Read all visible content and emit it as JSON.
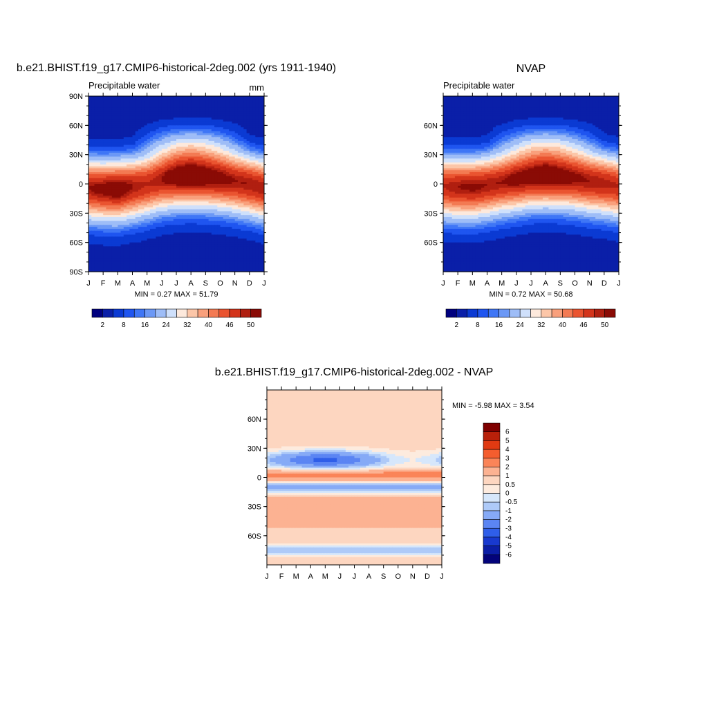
{
  "panels": [
    {
      "title": "b.e21.BHIST.f19_g17.CMIP6-historical-2deg.002 (yrs 1911-1940)",
      "left_label": "Precipitable water",
      "right_label": "mm",
      "min_max": "MIN =   0.27 MAX =  51.79",
      "ylabels": [
        "90N",
        "60N",
        "30N",
        "0",
        "30S",
        "60S",
        "90S"
      ],
      "xlabels": [
        "J",
        "F",
        "M",
        "A",
        "M",
        "J",
        "J",
        "A",
        "S",
        "O",
        "N",
        "D",
        "J"
      ],
      "colorbar_labels": [
        "2",
        "8",
        "16",
        "24",
        "32",
        "40",
        "46",
        "50"
      ]
    },
    {
      "title": "NVAP",
      "left_label": "Precipitable water",
      "right_label": "",
      "min_max": "MIN =   0.72 MAX =  50.68",
      "ylabels": [
        "60N",
        "30N",
        "0",
        "30S",
        "60S"
      ],
      "xlabels": [
        "J",
        "F",
        "M",
        "A",
        "M",
        "J",
        "J",
        "A",
        "S",
        "O",
        "N",
        "D",
        "J"
      ],
      "colorbar_labels": [
        "2",
        "8",
        "16",
        "24",
        "32",
        "40",
        "46",
        "50"
      ]
    },
    {
      "title": "b.e21.BHIST.f19_g17.CMIP6-historical-2deg.002 - NVAP",
      "min_max": "MIN =  -5.98 MAX =   3.54",
      "ylabels": [
        "60N",
        "30N",
        "0",
        "30S",
        "60S"
      ],
      "xlabels": [
        "J",
        "F",
        "M",
        "A",
        "M",
        "J",
        "J",
        "A",
        "S",
        "O",
        "N",
        "D",
        "J"
      ],
      "colorbar_labels": [
        "6",
        "5",
        "4",
        "3",
        "2",
        "1",
        "0.5",
        "0",
        "-0.5",
        "-1",
        "-2",
        "-3",
        "-4",
        "-5",
        "-6"
      ]
    }
  ],
  "colors": {
    "abs_scale": [
      "#00007f",
      "#0a1fa8",
      "#0b3ad3",
      "#1f55f0",
      "#3f76f6",
      "#6b98f6",
      "#9ebdf7",
      "#cfe0fb",
      "#fde9dc",
      "#fcc6a8",
      "#f9a07c",
      "#f37a53",
      "#ea5430",
      "#d3341b",
      "#b01f10",
      "#8a0b05"
    ],
    "diff_scale": [
      "#7f0000",
      "#b8200a",
      "#e03a12",
      "#f45d2e",
      "#fa8458",
      "#fcb292",
      "#fdd6c0",
      "#fdebde",
      "#d6e7fb",
      "#aecaf8",
      "#86aaf6",
      "#5b85f3",
      "#2f5ee9",
      "#1839cf",
      "#0b1ea6",
      "#03037a"
    ]
  },
  "chart_data": [
    {
      "type": "heatmap",
      "title": "b.e21.BHIST.f19_g17.CMIP6-historical-2deg.002 (yrs 1911-1940)",
      "subtitle": "Precipitable water",
      "units": "mm",
      "x": [
        "J",
        "F",
        "M",
        "A",
        "M",
        "J",
        "J",
        "A",
        "S",
        "O",
        "N",
        "D",
        "J"
      ],
      "y_range": [
        -90,
        90
      ],
      "min": 0.27,
      "max": 51.79,
      "contour_levels": [
        2,
        4,
        6,
        8,
        10,
        12,
        16,
        20,
        24,
        28,
        32,
        36,
        40,
        44,
        46,
        48,
        50
      ],
      "itcz_lat_by_month": [
        -4,
        -5,
        -5,
        -3,
        0,
        5,
        8,
        9,
        8,
        6,
        3,
        0,
        -4
      ],
      "itcz_peak_value_by_month": [
        46,
        48,
        50,
        46,
        44,
        46,
        50,
        51.79,
        50,
        48,
        46,
        46,
        46
      ]
    },
    {
      "type": "heatmap",
      "title": "NVAP",
      "subtitle": "Precipitable water",
      "x": [
        "J",
        "F",
        "M",
        "A",
        "M",
        "J",
        "J",
        "A",
        "S",
        "O",
        "N",
        "D",
        "J"
      ],
      "y_range": [
        -90,
        90
      ],
      "min": 0.72,
      "max": 50.68,
      "contour_levels": [
        2,
        4,
        6,
        8,
        10,
        12,
        16,
        20,
        24,
        28,
        32,
        36,
        40,
        44,
        46,
        48,
        50
      ],
      "itcz_lat_by_month": [
        -2,
        -3,
        -3,
        -1,
        2,
        5,
        8,
        9,
        8,
        6,
        3,
        1,
        -2
      ],
      "itcz_peak_value_by_month": [
        44,
        46,
        47,
        46,
        46,
        48,
        49,
        50.68,
        49,
        47,
        46,
        45,
        44
      ]
    },
    {
      "type": "heatmap",
      "title": "b.e21.BHIST.f19_g17.CMIP6-historical-2deg.002 - NVAP",
      "x": [
        "J",
        "F",
        "M",
        "A",
        "M",
        "J",
        "J",
        "A",
        "S",
        "O",
        "N",
        "D",
        "J"
      ],
      "y_range": [
        -90,
        90
      ],
      "min": -5.98,
      "max": 3.54,
      "contour_levels": [
        -6,
        -5,
        -4,
        -3,
        -2,
        -1,
        -0.5,
        0,
        0.5,
        1,
        2,
        3,
        4,
        5,
        6
      ]
    }
  ]
}
